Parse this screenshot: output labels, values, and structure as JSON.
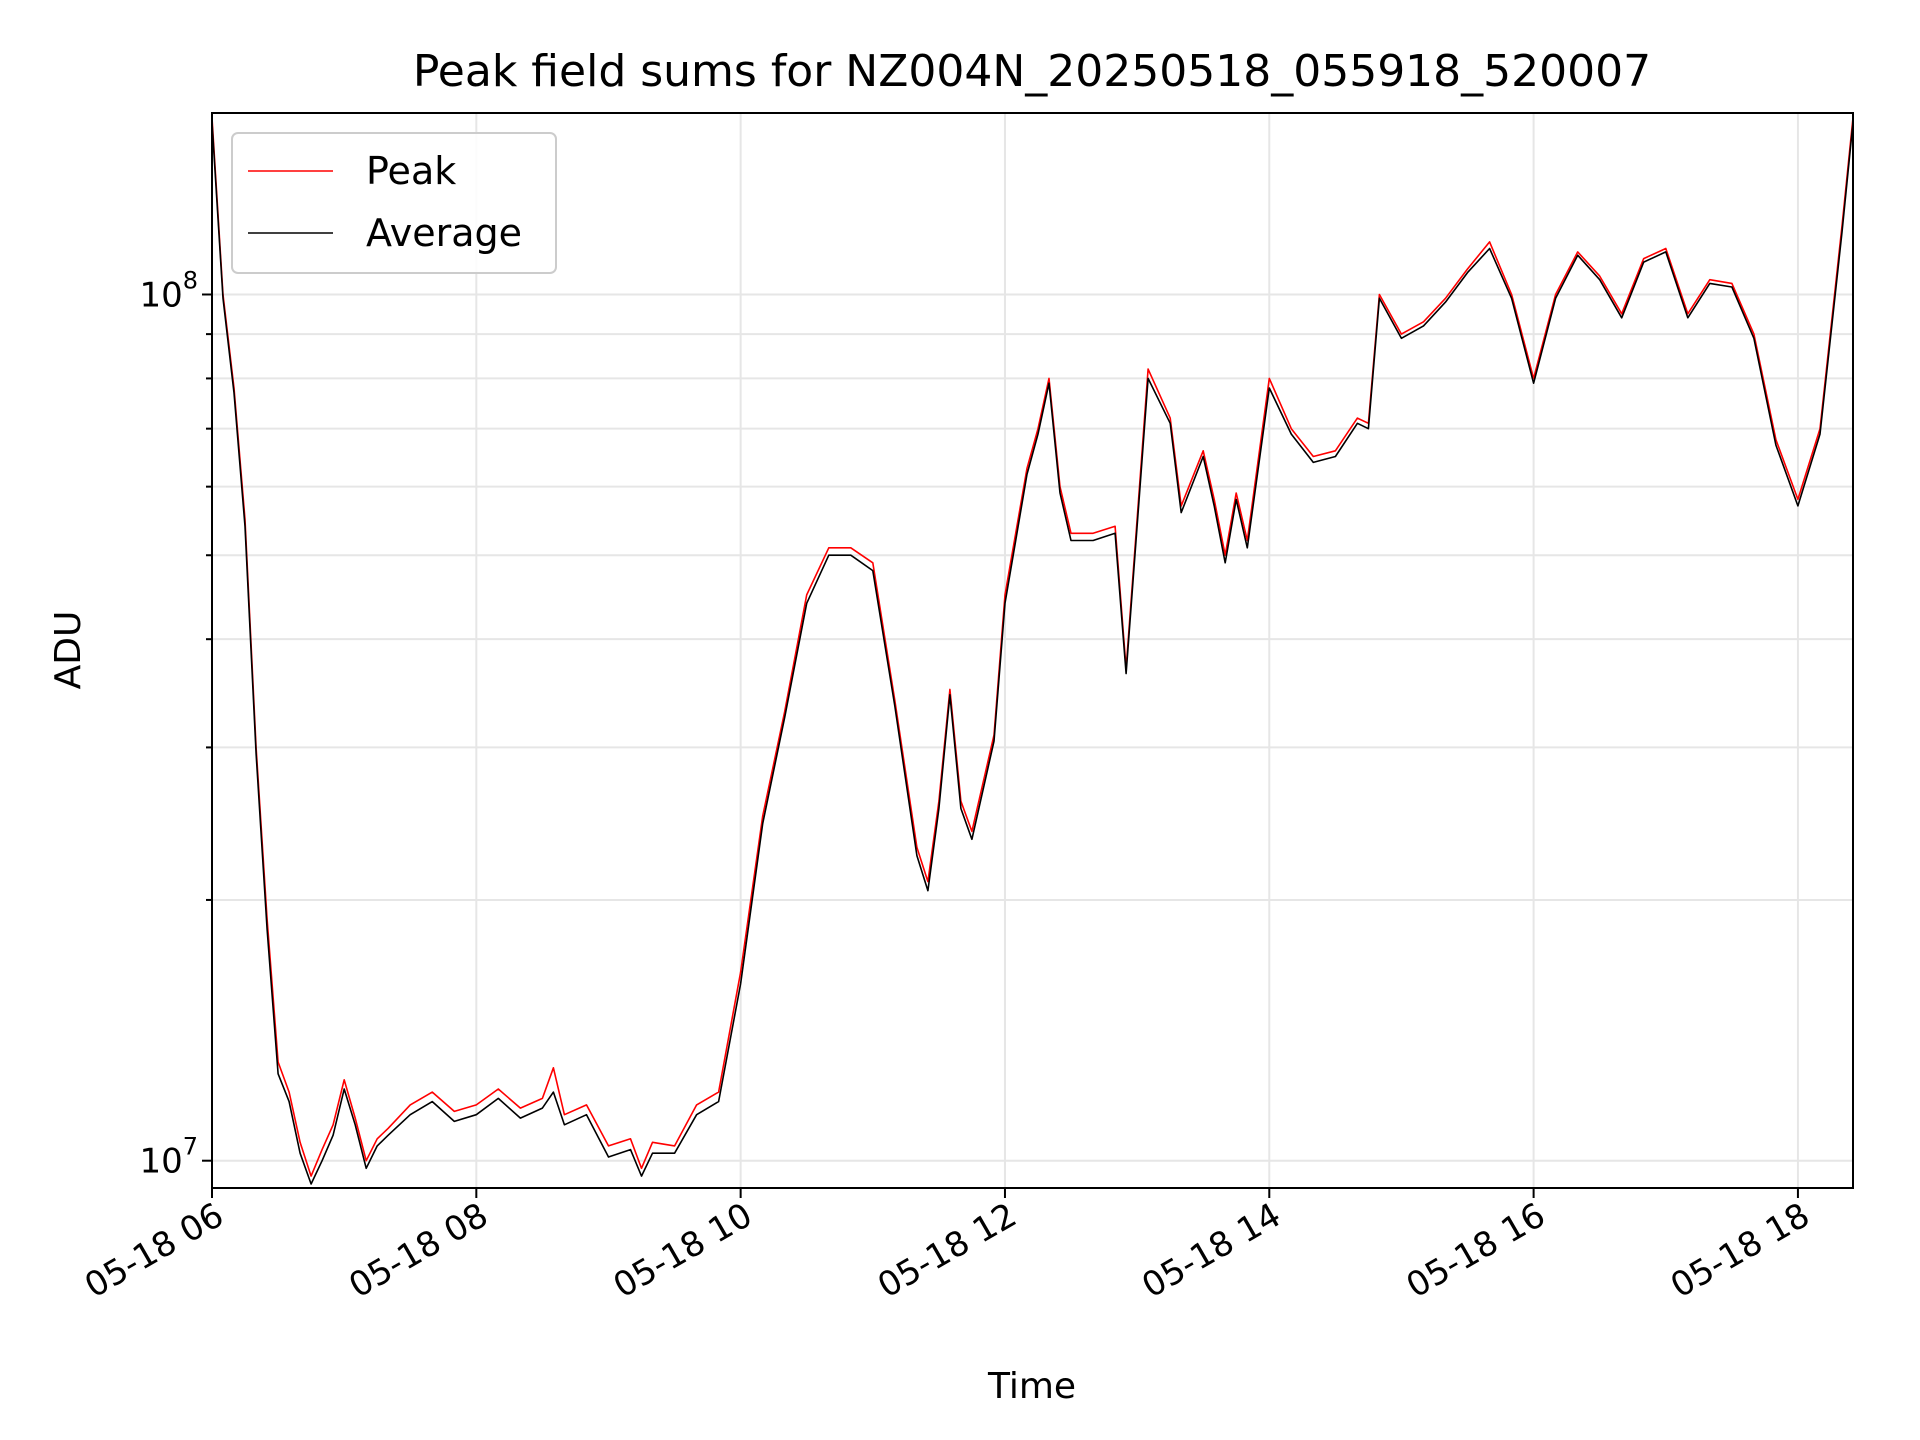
{
  "chart_data": {
    "type": "line",
    "title": "Peak field sums for NZ004N_20250518_055918_520007",
    "xlabel": "Time",
    "ylabel": "ADU",
    "y_scale": "log",
    "x_range": [
      "05-18 06:00",
      "05-18 18:25"
    ],
    "ylim": [
      9300000,
      162000000
    ],
    "x_ticks": [
      "05-18 06",
      "05-18 08",
      "05-18 10",
      "05-18 12",
      "05-18 14",
      "05-18 16",
      "05-18 18"
    ],
    "y_ticks": [
      {
        "base": "10",
        "exp": "7",
        "value": 10000000
      },
      {
        "base": "10",
        "exp": "8",
        "value": 100000000
      }
    ],
    "grid": true,
    "legend": {
      "placement": "top-left"
    },
    "colors": {
      "peak": "#ff0000",
      "average": "#000000"
    },
    "series": [
      {
        "name": "Peak",
        "color": "#ff0000",
        "points": [
          [
            "05-18 06:00",
            160000000
          ],
          [
            "05-18 06:05",
            100000000
          ],
          [
            "05-18 06:10",
            78000000
          ],
          [
            "05-18 06:15",
            55000000
          ],
          [
            "05-18 06:20",
            30000000
          ],
          [
            "05-18 06:25",
            19000000
          ],
          [
            "05-18 06:30",
            13000000
          ],
          [
            "05-18 06:35",
            12000000
          ],
          [
            "05-18 06:40",
            10500000
          ],
          [
            "05-18 06:45",
            9600000
          ],
          [
            "05-18 06:50",
            10300000
          ],
          [
            "05-18 06:55",
            11000000
          ],
          [
            "05-18 07:00",
            12400000
          ],
          [
            "05-18 07:05",
            11200000
          ],
          [
            "05-18 07:10",
            10000000
          ],
          [
            "05-18 07:15",
            10600000
          ],
          [
            "05-18 07:20",
            10900000
          ],
          [
            "05-18 07:30",
            11600000
          ],
          [
            "05-18 07:40",
            12000000
          ],
          [
            "05-18 07:50",
            11400000
          ],
          [
            "05-18 08:00",
            11600000
          ],
          [
            "05-18 08:10",
            12100000
          ],
          [
            "05-18 08:20",
            11500000
          ],
          [
            "05-18 08:30",
            11800000
          ],
          [
            "05-18 08:35",
            12800000
          ],
          [
            "05-18 08:40",
            11300000
          ],
          [
            "05-18 08:50",
            11600000
          ],
          [
            "05-18 09:00",
            10400000
          ],
          [
            "05-18 09:10",
            10600000
          ],
          [
            "05-18 09:15",
            9800000
          ],
          [
            "05-18 09:20",
            10500000
          ],
          [
            "05-18 09:30",
            10400000
          ],
          [
            "05-18 09:40",
            11600000
          ],
          [
            "05-18 09:50",
            12000000
          ],
          [
            "05-18 10:00",
            16500000
          ],
          [
            "05-18 10:10",
            25000000
          ],
          [
            "05-18 10:20",
            33000000
          ],
          [
            "05-18 10:30",
            45000000
          ],
          [
            "05-18 10:40",
            51000000
          ],
          [
            "05-18 10:50",
            51000000
          ],
          [
            "05-18 11:00",
            49000000
          ],
          [
            "05-18 11:10",
            34000000
          ],
          [
            "05-18 11:20",
            23000000
          ],
          [
            "05-18 11:25",
            21000000
          ],
          [
            "05-18 11:30",
            26000000
          ],
          [
            "05-18 11:35",
            35000000
          ],
          [
            "05-18 11:40",
            26000000
          ],
          [
            "05-18 11:45",
            24000000
          ],
          [
            "05-18 11:55",
            31000000
          ],
          [
            "05-18 12:00",
            45000000
          ],
          [
            "05-18 12:10",
            63000000
          ],
          [
            "05-18 12:15",
            70000000
          ],
          [
            "05-18 12:20",
            80000000
          ],
          [
            "05-18 12:25",
            60000000
          ],
          [
            "05-18 12:30",
            53000000
          ],
          [
            "05-18 12:40",
            53000000
          ],
          [
            "05-18 12:50",
            54000000
          ],
          [
            "05-18 12:55",
            37000000
          ],
          [
            "05-18 13:00",
            55000000
          ],
          [
            "05-18 13:05",
            82000000
          ],
          [
            "05-18 13:15",
            72000000
          ],
          [
            "05-18 13:20",
            57000000
          ],
          [
            "05-18 13:30",
            66000000
          ],
          [
            "05-18 13:35",
            58000000
          ],
          [
            "05-18 13:40",
            50000000
          ],
          [
            "05-18 13:45",
            59000000
          ],
          [
            "05-18 13:50",
            52000000
          ],
          [
            "05-18 14:00",
            80000000
          ],
          [
            "05-18 14:10",
            70000000
          ],
          [
            "05-18 14:20",
            65000000
          ],
          [
            "05-18 14:30",
            66000000
          ],
          [
            "05-18 14:40",
            72000000
          ],
          [
            "05-18 14:45",
            71000000
          ],
          [
            "05-18 14:50",
            100000000
          ],
          [
            "05-18 15:00",
            90000000
          ],
          [
            "05-18 15:10",
            93000000
          ],
          [
            "05-18 15:20",
            99000000
          ],
          [
            "05-18 15:30",
            107000000
          ],
          [
            "05-18 15:40",
            115000000
          ],
          [
            "05-18 15:50",
            100000000
          ],
          [
            "05-18 16:00",
            80000000
          ],
          [
            "05-18 16:10",
            100000000
          ],
          [
            "05-18 16:20",
            112000000
          ],
          [
            "05-18 16:30",
            105000000
          ],
          [
            "05-18 16:40",
            95000000
          ],
          [
            "05-18 16:50",
            110000000
          ],
          [
            "05-18 17:00",
            113000000
          ],
          [
            "05-18 17:10",
            95000000
          ],
          [
            "05-18 17:20",
            104000000
          ],
          [
            "05-18 17:30",
            103000000
          ],
          [
            "05-18 17:40",
            90000000
          ],
          [
            "05-18 17:50",
            68000000
          ],
          [
            "05-18 18:00",
            58000000
          ],
          [
            "05-18 18:10",
            70000000
          ],
          [
            "05-18 18:20",
            120000000
          ],
          [
            "05-18 18:25",
            160000000
          ]
        ]
      },
      {
        "name": "Average",
        "color": "#000000",
        "points": [
          [
            "05-18 06:00",
            158000000
          ],
          [
            "05-18 06:05",
            99000000
          ],
          [
            "05-18 06:10",
            77000000
          ],
          [
            "05-18 06:15",
            54000000
          ],
          [
            "05-18 06:20",
            29500000
          ],
          [
            "05-18 06:25",
            18500000
          ],
          [
            "05-18 06:30",
            12600000
          ],
          [
            "05-18 06:35",
            11700000
          ],
          [
            "05-18 06:40",
            10200000
          ],
          [
            "05-18 06:45",
            9400000
          ],
          [
            "05-18 06:50",
            10000000
          ],
          [
            "05-18 06:55",
            10700000
          ],
          [
            "05-18 07:00",
            12100000
          ],
          [
            "05-18 07:05",
            11000000
          ],
          [
            "05-18 07:10",
            9800000
          ],
          [
            "05-18 07:15",
            10400000
          ],
          [
            "05-18 07:20",
            10700000
          ],
          [
            "05-18 07:30",
            11300000
          ],
          [
            "05-18 07:40",
            11700000
          ],
          [
            "05-18 07:50",
            11100000
          ],
          [
            "05-18 08:00",
            11300000
          ],
          [
            "05-18 08:10",
            11800000
          ],
          [
            "05-18 08:20",
            11200000
          ],
          [
            "05-18 08:30",
            11500000
          ],
          [
            "05-18 08:35",
            12000000
          ],
          [
            "05-18 08:40",
            11000000
          ],
          [
            "05-18 08:50",
            11300000
          ],
          [
            "05-18 09:00",
            10100000
          ],
          [
            "05-18 09:10",
            10300000
          ],
          [
            "05-18 09:15",
            9600000
          ],
          [
            "05-18 09:20",
            10200000
          ],
          [
            "05-18 09:30",
            10200000
          ],
          [
            "05-18 09:40",
            11300000
          ],
          [
            "05-18 09:50",
            11700000
          ],
          [
            "05-18 10:00",
            16000000
          ],
          [
            "05-18 10:10",
            24500000
          ],
          [
            "05-18 10:20",
            32500000
          ],
          [
            "05-18 10:30",
            44000000
          ],
          [
            "05-18 10:40",
            50000000
          ],
          [
            "05-18 10:50",
            50000000
          ],
          [
            "05-18 11:00",
            48000000
          ],
          [
            "05-18 11:10",
            33500000
          ],
          [
            "05-18 11:20",
            22500000
          ],
          [
            "05-18 11:25",
            20500000
          ],
          [
            "05-18 11:30",
            25500000
          ],
          [
            "05-18 11:35",
            34500000
          ],
          [
            "05-18 11:40",
            25500000
          ],
          [
            "05-18 11:45",
            23500000
          ],
          [
            "05-18 11:55",
            30500000
          ],
          [
            "05-18 12:00",
            44000000
          ],
          [
            "05-18 12:10",
            62000000
          ],
          [
            "05-18 12:15",
            69000000
          ],
          [
            "05-18 12:20",
            79000000
          ],
          [
            "05-18 12:25",
            59000000
          ],
          [
            "05-18 12:30",
            52000000
          ],
          [
            "05-18 12:40",
            52000000
          ],
          [
            "05-18 12:50",
            53000000
          ],
          [
            "05-18 12:55",
            36500000
          ],
          [
            "05-18 13:00",
            54000000
          ],
          [
            "05-18 13:05",
            80000000
          ],
          [
            "05-18 13:15",
            71000000
          ],
          [
            "05-18 13:20",
            56000000
          ],
          [
            "05-18 13:30",
            65000000
          ],
          [
            "05-18 13:35",
            57000000
          ],
          [
            "05-18 13:40",
            49000000
          ],
          [
            "05-18 13:45",
            58000000
          ],
          [
            "05-18 13:50",
            51000000
          ],
          [
            "05-18 14:00",
            78000000
          ],
          [
            "05-18 14:10",
            69000000
          ],
          [
            "05-18 14:20",
            64000000
          ],
          [
            "05-18 14:30",
            65000000
          ],
          [
            "05-18 14:40",
            71000000
          ],
          [
            "05-18 14:45",
            70000000
          ],
          [
            "05-18 14:50",
            99000000
          ],
          [
            "05-18 15:00",
            89000000
          ],
          [
            "05-18 15:10",
            92000000
          ],
          [
            "05-18 15:20",
            98000000
          ],
          [
            "05-18 15:30",
            106000000
          ],
          [
            "05-18 15:40",
            113000000
          ],
          [
            "05-18 15:50",
            99000000
          ],
          [
            "05-18 16:00",
            79000000
          ],
          [
            "05-18 16:10",
            99000000
          ],
          [
            "05-18 16:20",
            111000000
          ],
          [
            "05-18 16:30",
            104000000
          ],
          [
            "05-18 16:40",
            94000000
          ],
          [
            "05-18 16:50",
            109000000
          ],
          [
            "05-18 17:00",
            112000000
          ],
          [
            "05-18 17:10",
            94000000
          ],
          [
            "05-18 17:20",
            103000000
          ],
          [
            "05-18 17:30",
            102000000
          ],
          [
            "05-18 17:40",
            89000000
          ],
          [
            "05-18 17:50",
            67000000
          ],
          [
            "05-18 18:00",
            57000000
          ],
          [
            "05-18 18:10",
            69000000
          ],
          [
            "05-18 18:20",
            118000000
          ],
          [
            "05-18 18:25",
            158000000
          ]
        ]
      }
    ]
  }
}
